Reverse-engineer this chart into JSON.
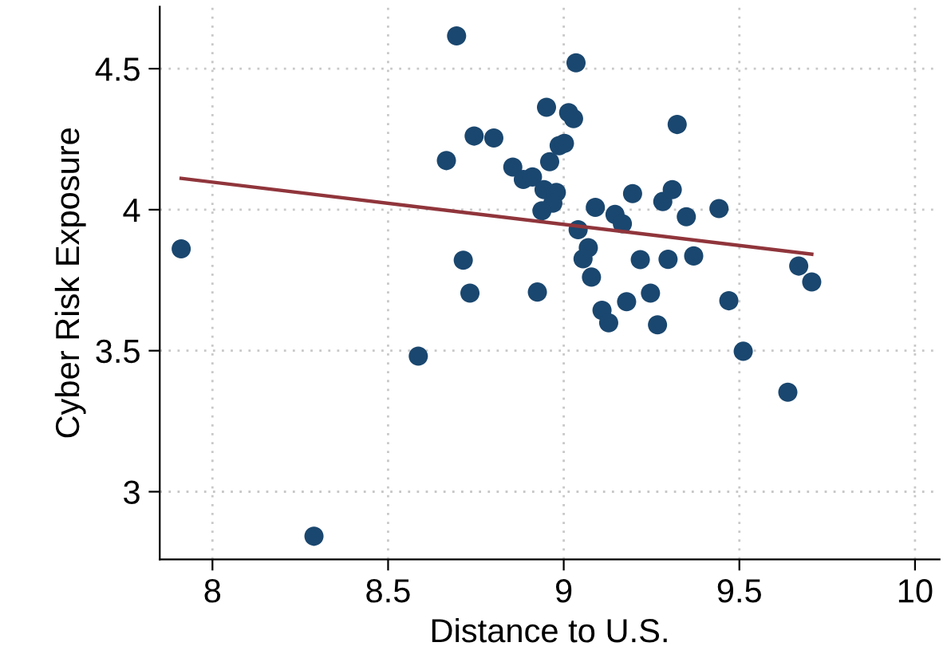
{
  "chart_data": {
    "type": "scatter",
    "xlabel": "Distance to U.S.",
    "ylabel": "Cyber Risk Exposure",
    "xlim": [
      7.85,
      10.07
    ],
    "ylim": [
      2.76,
      4.72
    ],
    "xticks": [
      8,
      8.5,
      9,
      9.5,
      10
    ],
    "yticks": [
      3,
      3.5,
      4,
      4.5
    ],
    "grid": true,
    "series": [
      {
        "marker": "circle",
        "color": "#1a476f",
        "x": [
          7.911,
          8.289,
          8.586,
          8.666,
          8.695,
          8.714,
          8.733,
          8.745,
          8.801,
          8.855,
          8.885,
          8.911,
          8.925,
          8.951,
          8.96,
          8.944,
          8.979,
          8.969,
          8.938,
          8.987,
          9.002,
          9.014,
          9.028,
          9.035,
          9.041,
          9.07,
          9.055,
          9.079,
          9.09,
          9.109,
          9.128,
          9.146,
          9.167,
          9.179,
          9.196,
          9.218,
          9.247,
          9.267,
          9.282,
          9.297,
          9.309,
          9.323,
          9.349,
          9.37,
          9.442,
          9.47,
          9.511,
          9.638,
          9.669,
          9.706
        ],
        "values": [
          3.861,
          2.842,
          3.481,
          4.174,
          4.616,
          3.821,
          3.704,
          4.261,
          4.254,
          4.151,
          4.107,
          4.116,
          3.708,
          4.363,
          4.17,
          4.071,
          4.061,
          4.023,
          3.996,
          4.227,
          4.235,
          4.344,
          4.323,
          4.521,
          3.929,
          3.865,
          3.826,
          3.761,
          4.008,
          3.643,
          3.599,
          3.983,
          3.95,
          3.674,
          4.057,
          3.823,
          3.704,
          3.592,
          4.029,
          3.824,
          4.071,
          4.302,
          3.975,
          3.836,
          4.004,
          3.677,
          3.498,
          3.353,
          3.8,
          3.744
        ]
      },
      {
        "type": "line",
        "marker": "none",
        "color": "#90353b",
        "x": [
          7.911,
          9.706
        ],
        "values": [
          4.111,
          3.842
        ]
      }
    ]
  }
}
